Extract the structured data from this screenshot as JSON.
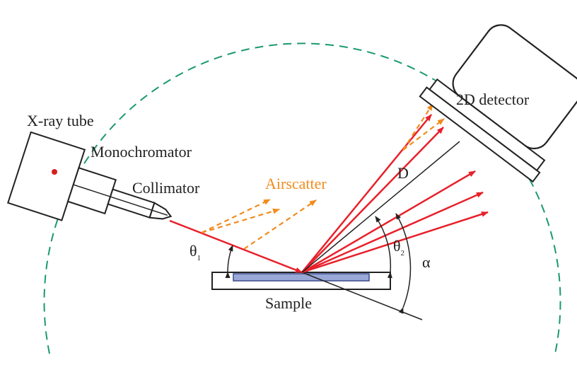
{
  "labels": {
    "xray_tube": "X-ray tube",
    "monochromator": "Monochromator",
    "collimator": "Collimator",
    "airscatter": "Airscatter",
    "detector": "2D detector",
    "distance": "D",
    "sample": "Sample",
    "theta": "θ",
    "theta1_sub": "1",
    "theta2_sub": "2",
    "alpha": "α"
  },
  "colors": {
    "beam": "#e8202a",
    "airscatter": "#f08c1e",
    "goniometer_circle": "#1a9a6a",
    "outline": "#222222",
    "sample_fill": "#9aa8d8",
    "focal_spot": "#d42020"
  }
}
